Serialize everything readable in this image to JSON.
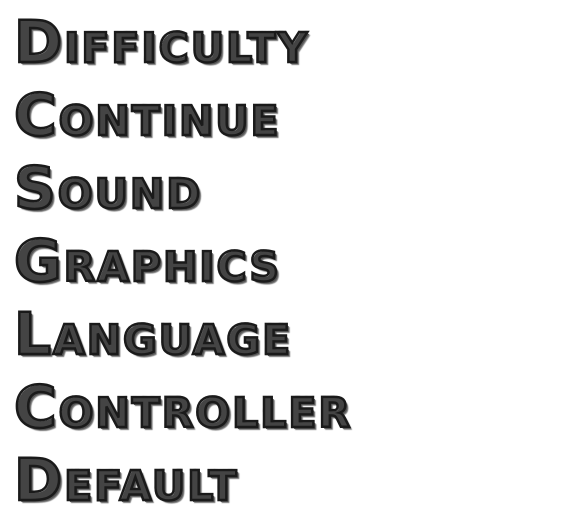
{
  "menu": {
    "items": [
      {
        "id": "difficulty",
        "label": "Difficulty"
      },
      {
        "id": "continue",
        "label": "Continue"
      },
      {
        "id": "sound",
        "label": "Sound"
      },
      {
        "id": "graphics",
        "label": "Graphics"
      },
      {
        "id": "language",
        "label": "Language"
      },
      {
        "id": "controller",
        "label": "Controller"
      },
      {
        "id": "default",
        "label": "Default"
      }
    ]
  },
  "colors": {
    "letter_fill": "#e6e6e6",
    "letter_outline": "#1a1a1a",
    "background": "#ffffff"
  }
}
